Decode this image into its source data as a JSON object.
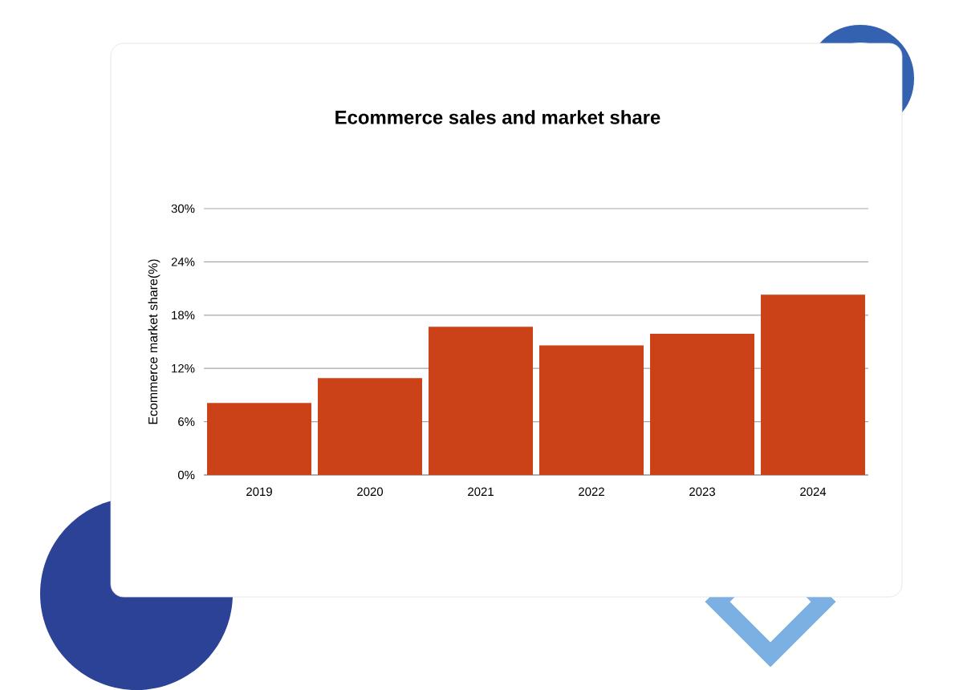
{
  "chart_data": {
    "type": "bar",
    "title": "Ecommerce sales and market share",
    "ylabel": "Ecommerce market share(%)",
    "categories": [
      "2019",
      "2020",
      "2021",
      "2022",
      "2023",
      "2024"
    ],
    "values": [
      8.1,
      10.9,
      16.7,
      14.6,
      15.9,
      20.3
    ],
    "color": "#cc4218",
    "ylim": [
      0,
      30
    ],
    "yticks": [
      {
        "value": 0,
        "label": "0%"
      },
      {
        "value": 6,
        "label": "6%"
      },
      {
        "value": 12,
        "label": "12%"
      },
      {
        "value": 18,
        "label": "18%"
      },
      {
        "value": 24,
        "label": "24%"
      },
      {
        "value": 30,
        "label": "30%"
      }
    ],
    "grid": "y"
  }
}
